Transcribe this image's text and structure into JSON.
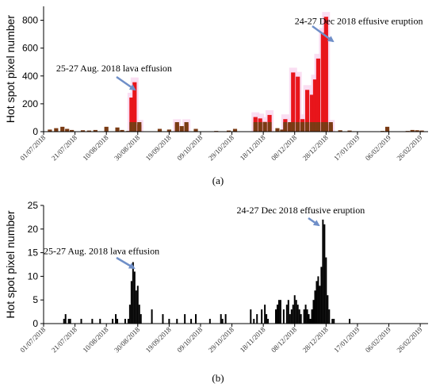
{
  "colors": {
    "bar_a_red": "#e8151b",
    "bar_a_brown": "#7a3b14",
    "bar_b": "#000000",
    "arrow": "#6f8fc8"
  },
  "chart_data": [
    {
      "type": "bar",
      "panel_label": "(a)",
      "ylabel": "Hot spot pixel number",
      "ylim": [
        0,
        900
      ],
      "yticks": [
        0,
        200,
        400,
        600,
        800
      ],
      "xlim": [
        "2018-07-01",
        "2019-03-03"
      ],
      "xtick_labels": [
        "01/07/2018",
        "21/07/2018",
        "10/08/2018",
        "30/08/2018",
        "19/09/2018",
        "09/10/2018",
        "29/10/2018",
        "18/11/2018",
        "08/12/2018",
        "28/12/2018",
        "17/01/2019",
        "06/02/2019",
        "26/02/2019"
      ],
      "xtick_dates": [
        "2018-07-01",
        "2018-07-21",
        "2018-08-10",
        "2018-08-30",
        "2018-09-19",
        "2018-10-09",
        "2018-10-29",
        "2018-11-18",
        "2018-12-08",
        "2018-12-28",
        "2019-01-17",
        "2019-02-06",
        "2019-02-26"
      ],
      "series": [
        {
          "values": [
            [
              "2018-07-05",
              15
            ],
            [
              "2018-07-09",
              25
            ],
            [
              "2018-07-13",
              35
            ],
            [
              "2018-07-16",
              20
            ],
            [
              "2018-07-19",
              12
            ],
            [
              "2018-07-26",
              10
            ],
            [
              "2018-07-30",
              8
            ],
            [
              "2018-08-03",
              12
            ],
            [
              "2018-08-10",
              35
            ],
            [
              "2018-08-17",
              30
            ],
            [
              "2018-08-20",
              12
            ],
            [
              "2018-08-24",
              5
            ],
            [
              "2018-08-26",
              245
            ],
            [
              "2018-08-28",
              355
            ],
            [
              "2018-08-31",
              50
            ],
            [
              "2018-09-13",
              20
            ],
            [
              "2018-09-19",
              15
            ],
            [
              "2018-09-24",
              55
            ],
            [
              "2018-09-27",
              40
            ],
            [
              "2018-09-30",
              55
            ],
            [
              "2018-10-06",
              20
            ],
            [
              "2018-10-19",
              5
            ],
            [
              "2018-10-27",
              8
            ],
            [
              "2018-10-31",
              20
            ],
            [
              "2018-11-13",
              105
            ],
            [
              "2018-11-16",
              95
            ],
            [
              "2018-11-19",
              70
            ],
            [
              "2018-11-22",
              120
            ],
            [
              "2018-11-27",
              25
            ],
            [
              "2018-11-30",
              15
            ],
            [
              "2018-12-02",
              90
            ],
            [
              "2018-12-05",
              60
            ],
            [
              "2018-12-07",
              425
            ],
            [
              "2018-12-10",
              395
            ],
            [
              "2018-12-13",
              90
            ],
            [
              "2018-12-16",
              300
            ],
            [
              "2018-12-19",
              265
            ],
            [
              "2018-12-21",
              375
            ],
            [
              "2018-12-23",
              525
            ],
            [
              "2018-12-26",
              710
            ],
            [
              "2018-12-28",
              825
            ],
            [
              "2018-12-31",
              50
            ],
            [
              "2019-01-06",
              10
            ],
            [
              "2019-01-12",
              8
            ],
            [
              "2019-01-15",
              3
            ],
            [
              "2019-02-02",
              5
            ],
            [
              "2019-02-05",
              35
            ],
            [
              "2019-02-18",
              5
            ],
            [
              "2019-02-21",
              12
            ],
            [
              "2019-02-24",
              10
            ],
            [
              "2019-02-27",
              8
            ]
          ]
        }
      ],
      "annotations": [
        {
          "text": "24-27 Dec 2018 effusive eruption",
          "date": "2018-12-08",
          "y": 772
        },
        {
          "text": "25-27 Aug. 2018 lava effusion",
          "date": "2018-07-09",
          "y": 432
        }
      ]
    },
    {
      "type": "bar",
      "panel_label": "(b)",
      "ylabel": "Hot spot pixel number",
      "ylim": [
        0,
        25
      ],
      "yticks": [
        0,
        5,
        10,
        15,
        20,
        25
      ],
      "xlim": [
        "2018-07-01",
        "2019-03-03"
      ],
      "xtick_labels": [
        "01/07/2018",
        "21/07/2018",
        "10/08/2018",
        "30/08/2018",
        "19/09/2018",
        "09/10/2018",
        "29/10/2018",
        "18/11/2018",
        "08/12/2018",
        "28/12/2018",
        "17/01/2019",
        "06/02/2019",
        "26/02/2019"
      ],
      "xtick_dates": [
        "2018-07-01",
        "2018-07-21",
        "2018-08-10",
        "2018-08-30",
        "2018-09-19",
        "2018-10-09",
        "2018-10-29",
        "2018-11-18",
        "2018-12-08",
        "2018-12-28",
        "2019-01-17",
        "2019-02-06",
        "2019-02-26"
      ],
      "series": [
        {
          "values": [
            [
              "2018-07-14",
              1
            ],
            [
              "2018-07-15",
              2
            ],
            [
              "2018-07-17",
              1
            ],
            [
              "2018-07-18",
              1
            ],
            [
              "2018-07-25",
              1
            ],
            [
              "2018-08-01",
              1
            ],
            [
              "2018-08-06",
              1
            ],
            [
              "2018-08-14",
              1
            ],
            [
              "2018-08-16",
              2
            ],
            [
              "2018-08-17",
              1
            ],
            [
              "2018-08-22",
              1
            ],
            [
              "2018-08-24",
              1
            ],
            [
              "2018-08-25",
              4
            ],
            [
              "2018-08-26",
              9
            ],
            [
              "2018-08-27",
              13
            ],
            [
              "2018-08-28",
              11
            ],
            [
              "2018-08-29",
              7
            ],
            [
              "2018-08-30",
              8
            ],
            [
              "2018-08-31",
              4
            ],
            [
              "2018-09-01",
              2
            ],
            [
              "2018-09-08",
              3
            ],
            [
              "2018-09-15",
              2
            ],
            [
              "2018-09-19",
              1
            ],
            [
              "2018-09-24",
              1
            ],
            [
              "2018-09-29",
              2
            ],
            [
              "2018-10-03",
              1
            ],
            [
              "2018-10-06",
              2
            ],
            [
              "2018-10-15",
              1
            ],
            [
              "2018-10-22",
              2
            ],
            [
              "2018-10-23",
              1
            ],
            [
              "2018-10-25",
              2
            ],
            [
              "2018-11-10",
              3
            ],
            [
              "2018-11-12",
              1
            ],
            [
              "2018-11-14",
              2
            ],
            [
              "2018-11-17",
              3
            ],
            [
              "2018-11-19",
              4
            ],
            [
              "2018-11-20",
              2
            ],
            [
              "2018-11-21",
              1
            ],
            [
              "2018-11-26",
              3
            ],
            [
              "2018-11-27",
              4
            ],
            [
              "2018-11-28",
              5
            ],
            [
              "2018-11-29",
              5
            ],
            [
              "2018-12-01",
              3
            ],
            [
              "2018-12-03",
              4
            ],
            [
              "2018-12-04",
              5
            ],
            [
              "2018-12-05",
              2
            ],
            [
              "2018-12-06",
              3
            ],
            [
              "2018-12-07",
              4
            ],
            [
              "2018-12-08",
              6
            ],
            [
              "2018-12-09",
              5
            ],
            [
              "2018-12-10",
              4
            ],
            [
              "2018-12-11",
              3
            ],
            [
              "2018-12-12",
              2
            ],
            [
              "2018-12-14",
              3
            ],
            [
              "2018-12-15",
              4
            ],
            [
              "2018-12-16",
              3
            ],
            [
              "2018-12-17",
              2
            ],
            [
              "2018-12-18",
              1
            ],
            [
              "2018-12-19",
              3
            ],
            [
              "2018-12-20",
              5
            ],
            [
              "2018-12-21",
              7
            ],
            [
              "2018-12-22",
              9
            ],
            [
              "2018-12-23",
              10
            ],
            [
              "2018-12-24",
              8
            ],
            [
              "2018-12-25",
              12
            ],
            [
              "2018-12-26",
              22
            ],
            [
              "2018-12-27",
              21
            ],
            [
              "2018-12-28",
              14
            ],
            [
              "2018-12-29",
              6
            ],
            [
              "2018-12-30",
              3
            ],
            [
              "2019-01-01",
              1
            ],
            [
              "2019-01-02",
              1
            ],
            [
              "2019-01-12",
              1
            ]
          ]
        }
      ],
      "annotations": [
        {
          "text": "24-27 Dec 2018 effusive eruption",
          "date": "2018-11-01",
          "y": 23.3
        },
        {
          "text": "25-27 Aug. 2018 lava effusion",
          "date": "2018-07-01",
          "y": 14.7
        }
      ]
    }
  ]
}
